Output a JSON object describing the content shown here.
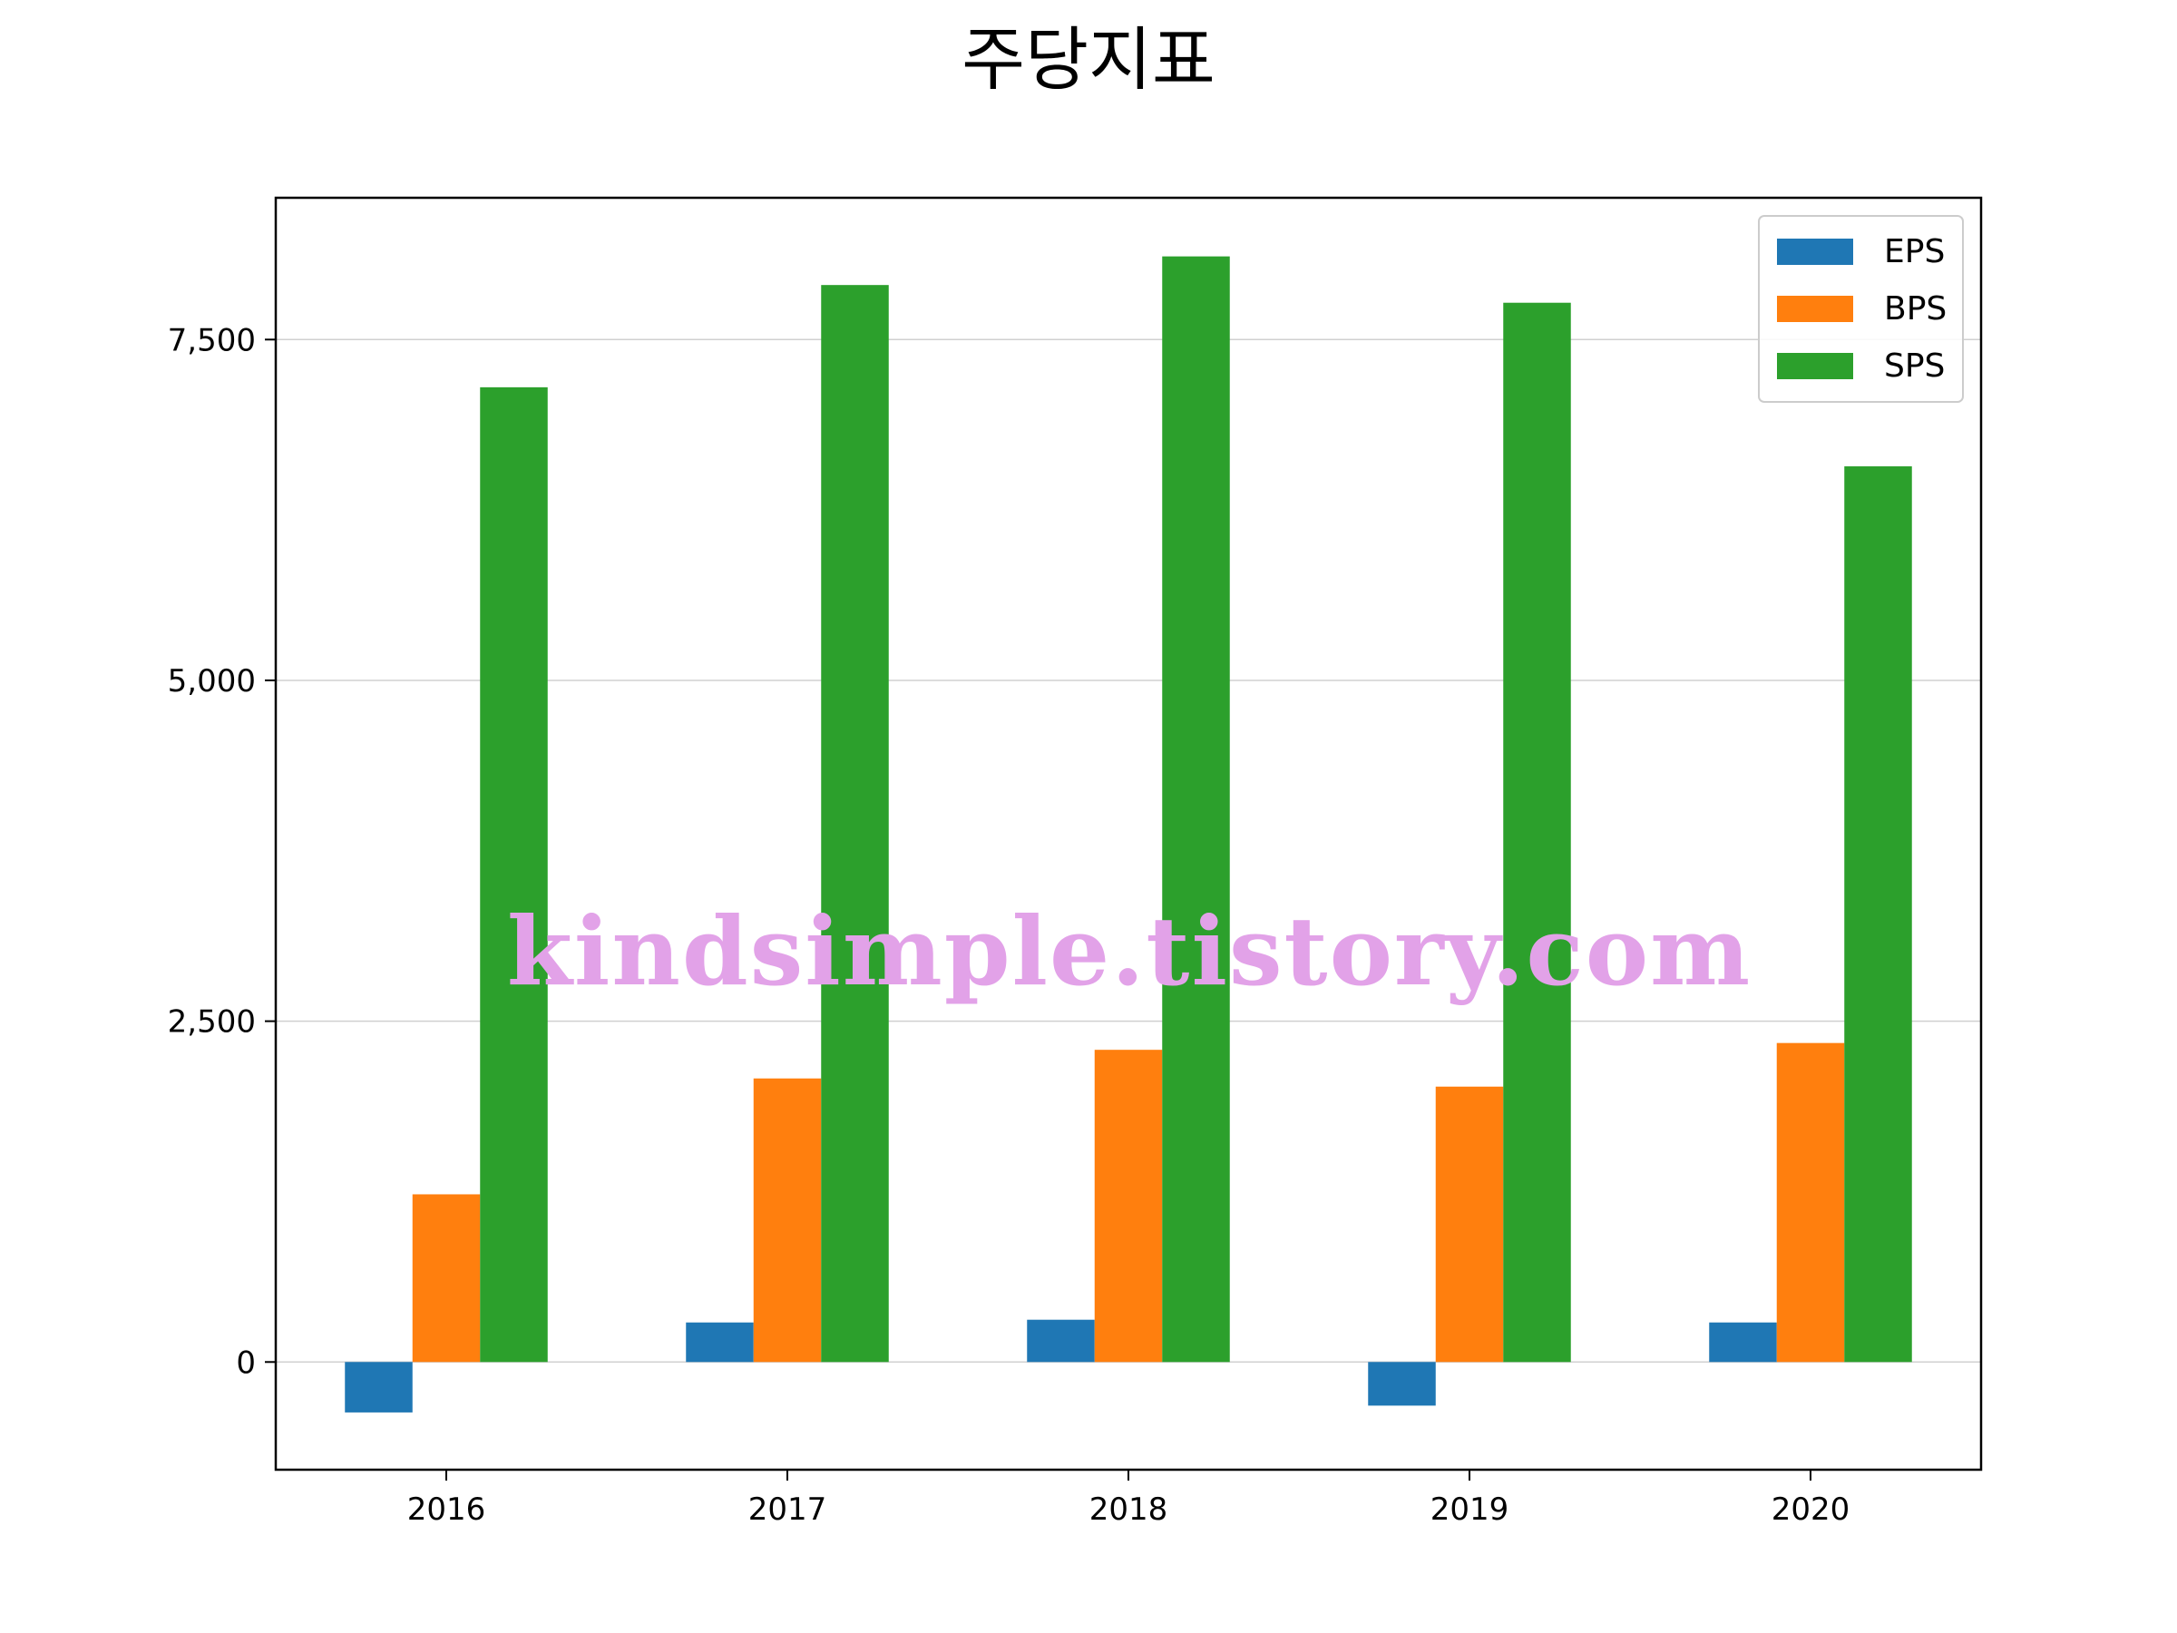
{
  "chart_data": {
    "type": "bar",
    "title": "주당지표",
    "xlabel": "",
    "ylabel": "",
    "categories": [
      "2016",
      "2017",
      "2018",
      "2019",
      "2020"
    ],
    "series": [
      {
        "name": "EPS",
        "color": "#1f77b4",
        "values": [
          -370,
          290,
          310,
          -320,
          290
        ]
      },
      {
        "name": "BPS",
        "color": "#ff7f0e",
        "values": [
          1230,
          2080,
          2290,
          2020,
          2340
        ]
      },
      {
        "name": "SPS",
        "color": "#2ca02c",
        "values": [
          7150,
          7900,
          8110,
          7770,
          6570
        ]
      }
    ],
    "ylim": [
      -790,
      8540
    ],
    "yticks": [
      0,
      2500,
      5000,
      7500
    ],
    "ytick_labels": [
      "0",
      "2,500",
      "5,000",
      "7,500"
    ],
    "grid": "horizontal",
    "legend_position": "top-right"
  },
  "watermark": "kindsimple.tistory.com"
}
